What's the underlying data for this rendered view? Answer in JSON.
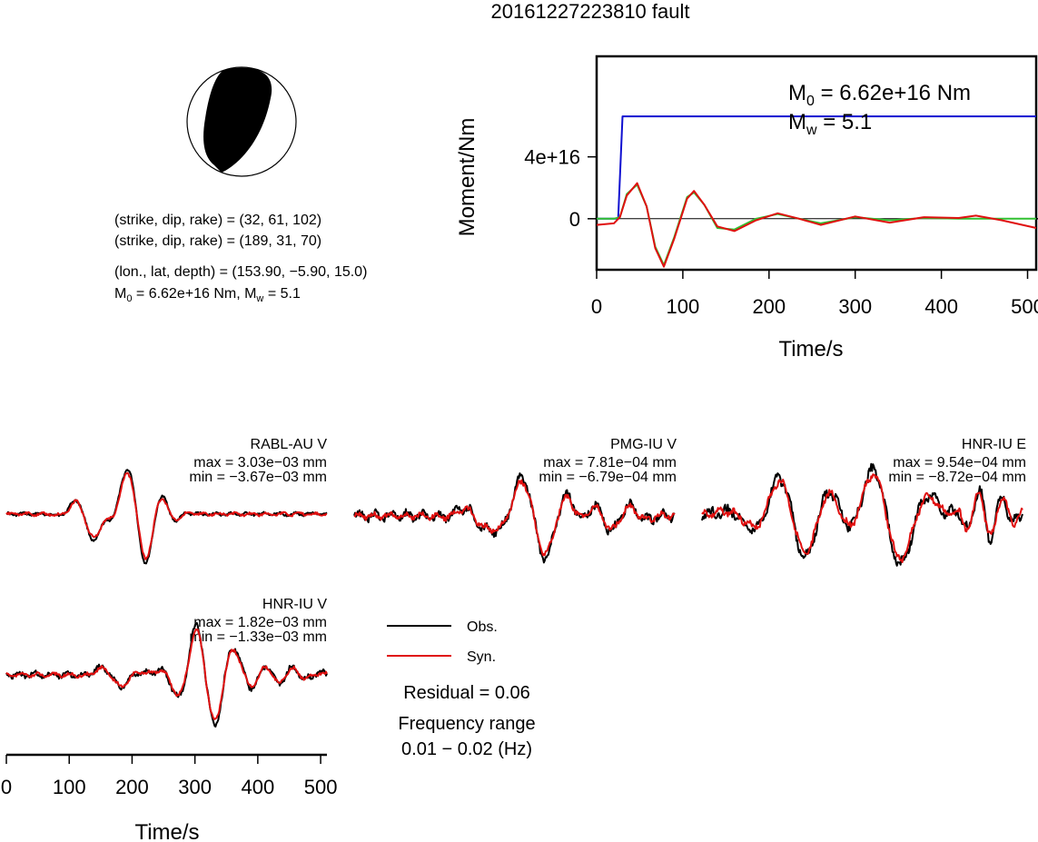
{
  "title": "20161227223810 fault",
  "beachball": {
    "planes": [
      "(strike, dip, rake) = (32, 61, 102)",
      "(strike, dip, rake) = (189, 31, 70)"
    ],
    "location": "(lon., lat, depth) = (153.90, −5.90, 15.0)",
    "moment_line": {
      "m0_prefix": "M",
      "m0_sub": "0",
      "m0_value": " = 6.62e+16 Nm, M",
      "mw_sub": "w",
      "mw_value": " = 5.1"
    }
  },
  "stf_panel": {
    "ylabel": "Moment/Nm",
    "xlabel": "Time/s",
    "m0_text": {
      "prefix": "M",
      "sub": "0",
      "value": " = 6.62e+16 Nm"
    },
    "mw_text": {
      "prefix": "M",
      "sub": "w",
      "value": " = 5.1"
    },
    "y_ticks": [
      "0",
      "4e+16"
    ],
    "x_ticks": [
      "0",
      "100",
      "200",
      "300",
      "400",
      "500"
    ]
  },
  "waveforms": [
    {
      "station": "RABL-AU V",
      "max": "max = 3.03e−03 mm",
      "min": "min = −3.67e−03 mm"
    },
    {
      "station": "PMG-IU V",
      "max": "max = 7.81e−04 mm",
      "min": "min = −6.79e−04 mm"
    },
    {
      "station": "HNR-IU E",
      "max": "max = 9.54e−04 mm",
      "min": "min = −8.72e−04 mm"
    },
    {
      "station": "HNR-IU V",
      "max": "max = 1.82e−03 mm",
      "min": "min = −1.33e−03 mm"
    }
  ],
  "time_axis": {
    "xlabel": "Time/s",
    "ticks": [
      "0",
      "100",
      "200",
      "300",
      "400",
      "500"
    ]
  },
  "legend": {
    "obs": "Obs.",
    "syn": "Syn.",
    "residual": "Residual = 0.06",
    "freq_label": "Frequency range",
    "freq_value": "0.01 − 0.02 (Hz)"
  },
  "colors": {
    "obs": "#000000",
    "syn": "#e01010",
    "stf": "#1010d0",
    "green": "#30c030"
  },
  "chart_data": {
    "type": "line",
    "title": "20161227223810 fault",
    "xlabel": "Time/s",
    "ylabel": "Moment/Nm",
    "xlim": [
      0,
      510
    ],
    "ylim": [
      -3.3e+16,
      1.05e+17
    ],
    "yticks": [
      0,
      4e+16
    ],
    "xticks": [
      0,
      100,
      200,
      300,
      400,
      500
    ],
    "series": [
      {
        "x": [
          0,
          20,
          25,
          28,
          30,
          510
        ],
        "values": [
          0,
          0,
          0,
          4e+16,
          6.62e+16,
          6.62e+16
        ]
      },
      {
        "x": [
          0,
          20,
          27,
          35,
          47,
          58,
          68,
          78,
          90,
          105,
          113,
          125,
          140,
          160,
          185,
          210,
          235,
          260,
          300,
          340,
          380,
          420,
          460,
          510
        ],
        "values": [
          0,
          0,
          1000000000000000.0,
          1.6e+16,
          2.2e+16,
          8000000000000000.0,
          -1.8e+16,
          -3e+16,
          -1.2e+16,
          1.4e+16,
          1.7e+16,
          9000000000000000.0,
          -6000000000000000.0,
          -7000000000000000.0,
          0,
          3000000000000000.0,
          0,
          -3000000000000000.0,
          1000000000000000.0,
          -1000000000000000.0,
          500000000000000.0,
          0,
          0,
          0
        ]
      },
      {
        "x": [
          0,
          20,
          27,
          35,
          47,
          58,
          68,
          78,
          90,
          105,
          113,
          125,
          140,
          160,
          185,
          210,
          235,
          260,
          300,
          340,
          380,
          420,
          440,
          470,
          510
        ],
        "values": [
          -4000000000000000.0,
          -3000000000000000.0,
          1000000000000000.0,
          1.5e+16,
          2.3e+16,
          8000000000000000.0,
          -1.9e+16,
          -3.1e+16,
          -1.3e+16,
          1.3e+16,
          1.8e+16,
          9000000000000000.0,
          -5000000000000000.0,
          -8000000000000000.0,
          -1000000000000000.0,
          3500000000000000.0,
          0,
          -4000000000000000.0,
          1500000000000000.0,
          -2500000000000000.0,
          1000000000000000.0,
          500000000000000.0,
          2000000000000000.0,
          -1000000000000000.0,
          -6000000000000000.0
        ]
      }
    ]
  }
}
